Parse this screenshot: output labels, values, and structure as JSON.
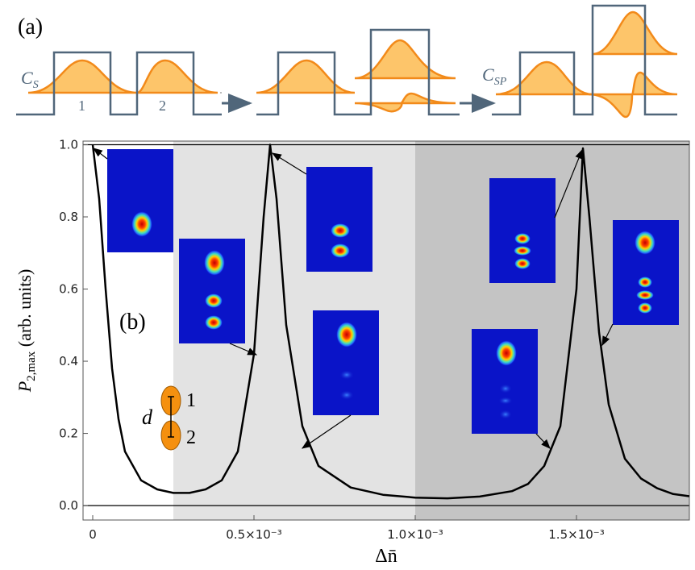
{
  "chart_data": {
    "type": "line",
    "panel_label_a": "(a)",
    "panel_label_b": "(b)",
    "x_label": "Δn̄",
    "y_label": {
      "main": "P",
      "sub": "2,max",
      "rest": " (arb. units)"
    },
    "xlim": [
      -3e-05,
      0.00185
    ],
    "ylim": [
      -0.04,
      1.01
    ],
    "xticks": [
      0,
      {
        "value": 0.0005,
        "label": "0.5×10⁻³"
      },
      {
        "value": 0.001,
        "label": "1.0×10⁻³"
      },
      {
        "value": 0.0015,
        "label": "1.5×10⁻³"
      }
    ],
    "yticks": [
      {
        "value": 0,
        "label": "0.0"
      },
      0.2,
      0.4,
      0.6,
      0.8,
      {
        "value": 1,
        "label": "1.0"
      }
    ],
    "reference_lines": [
      0,
      1
    ],
    "shaded_regions": [
      {
        "from": 0.00025,
        "to": 0.001,
        "color": "#e3e3e3"
      },
      {
        "from": 0.001,
        "to": 0.00185,
        "color": "#c4c4c4"
      }
    ],
    "color": "#000000",
    "x": [
      0,
      2e-05,
      4e-05,
      6e-05,
      8e-05,
      0.0001,
      0.00015,
      0.0002,
      0.00025,
      0.0003,
      0.00035,
      0.0004,
      0.00045,
      0.0005,
      0.00053,
      0.00055,
      0.00057,
      0.0006,
      0.00065,
      0.0007,
      0.0008,
      0.0009,
      0.001,
      0.0011,
      0.0012,
      0.0013,
      0.00135,
      0.0014,
      0.00145,
      0.0015,
      0.00152,
      0.00154,
      0.00157,
      0.0016,
      0.00165,
      0.0017,
      0.00175,
      0.0018,
      0.00185
    ],
    "values": [
      1.0,
      0.85,
      0.6,
      0.38,
      0.24,
      0.15,
      0.07,
      0.045,
      0.035,
      0.035,
      0.045,
      0.07,
      0.15,
      0.42,
      0.8,
      1.0,
      0.85,
      0.5,
      0.22,
      0.11,
      0.05,
      0.03,
      0.022,
      0.02,
      0.025,
      0.04,
      0.06,
      0.11,
      0.22,
      0.6,
      0.99,
      0.8,
      0.48,
      0.28,
      0.13,
      0.075,
      0.048,
      0.032,
      0.026
    ],
    "schematic": {
      "well_labels": [
        "1",
        "2"
      ],
      "state_labels": [
        {
          "main": "C",
          "sub": "S"
        },
        {
          "main": "C",
          "sub": "SP"
        }
      ]
    },
    "dimer": {
      "site_labels": [
        "1",
        "2"
      ],
      "distance_label": "d"
    }
  }
}
